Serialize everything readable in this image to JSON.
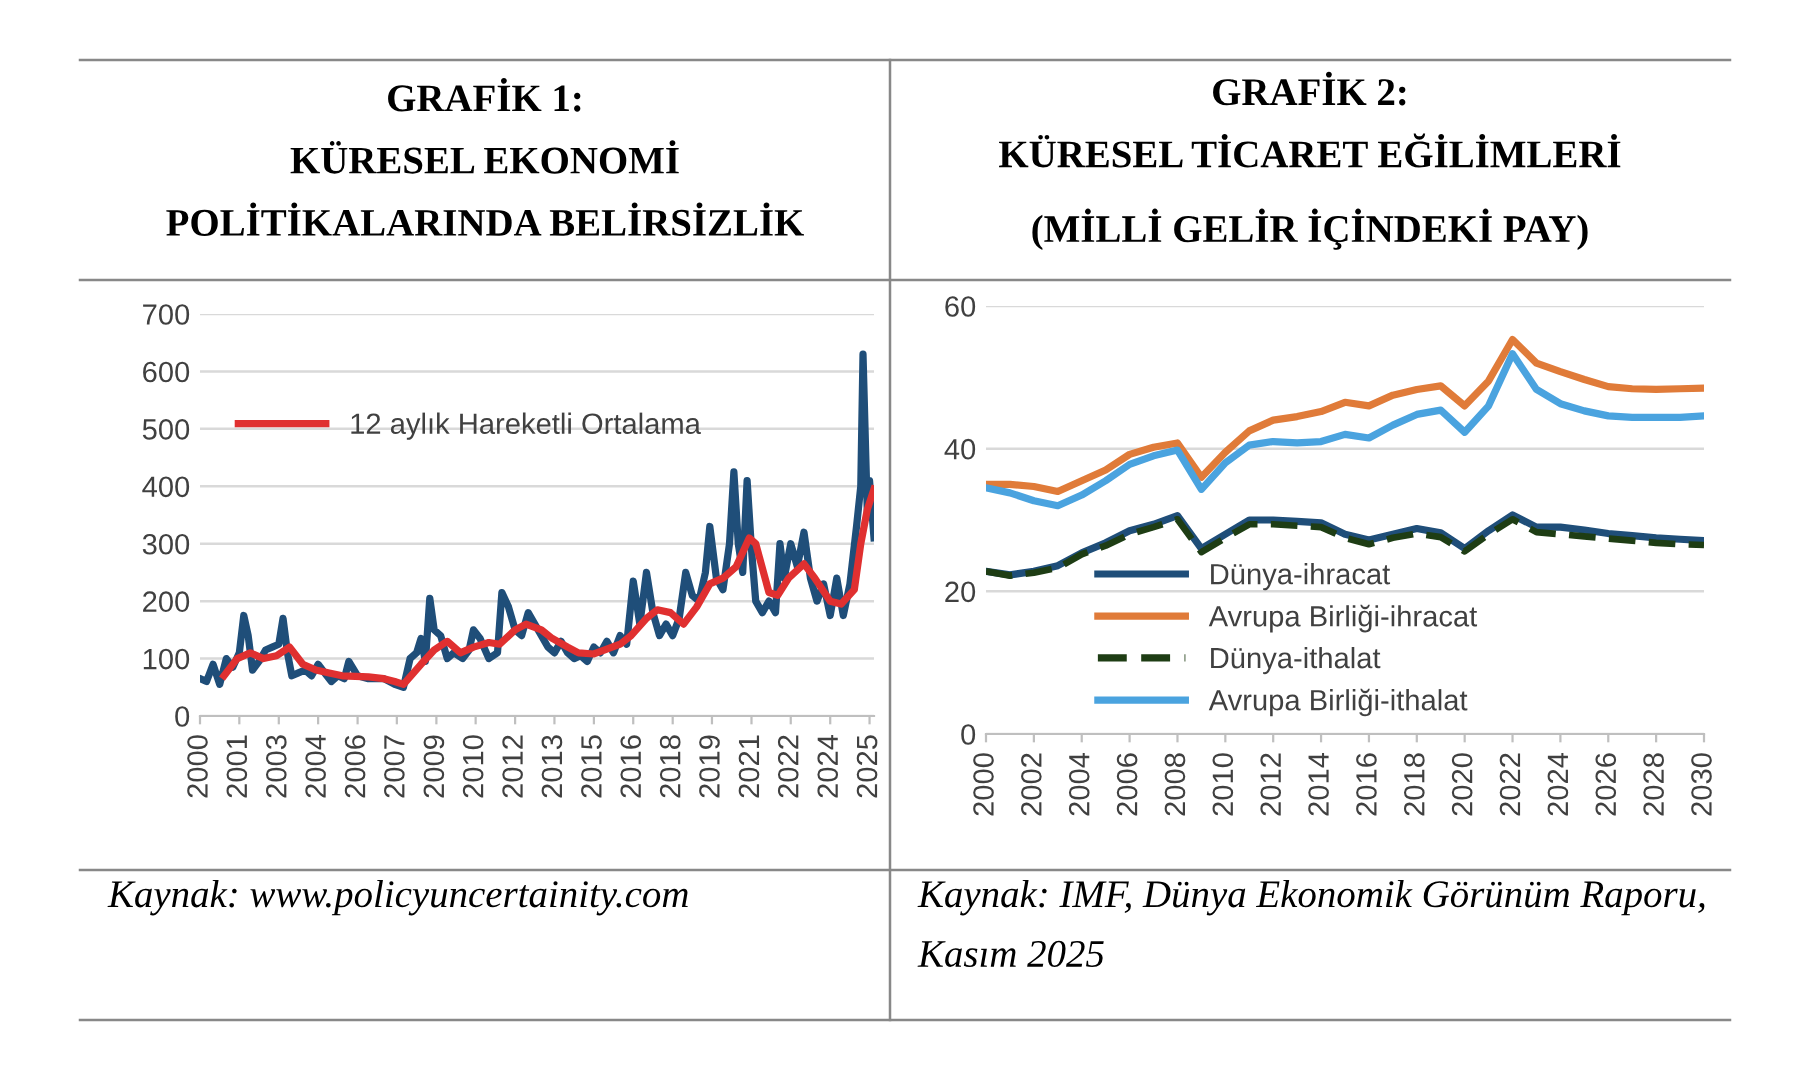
{
  "chart_data": [
    {
      "type": "line",
      "title": "GRAFİK 1:\nKÜRESEL EKONOMİ\nPOLİTİKALARINDA BELİRSİZLİK",
      "series": [
        {
          "color": "#1f4e79",
          "x": [
            "2000-01",
            "2000-04",
            "2000-07",
            "2000-10",
            "2001-01",
            "2001-04",
            "2001-07",
            "2001-09",
            "2001-11",
            "2002-01",
            "2002-04",
            "2002-07",
            "2002-10",
            "2003-01",
            "2003-03",
            "2003-05",
            "2003-07",
            "2003-10",
            "2004-01",
            "2004-04",
            "2004-07",
            "2004-10",
            "2005-01",
            "2005-04",
            "2005-07",
            "2005-09",
            "2006-01",
            "2006-06",
            "2007-01",
            "2007-06",
            "2007-10",
            "2008-01",
            "2008-04",
            "2008-06",
            "2008-08",
            "2008-10",
            "2008-12",
            "2009-03",
            "2009-06",
            "2009-09",
            "2010-01",
            "2010-04",
            "2010-06",
            "2010-09",
            "2011-01",
            "2011-05",
            "2011-07",
            "2011-10",
            "2012-01",
            "2012-04",
            "2012-07",
            "2012-10",
            "2013-01",
            "2013-04",
            "2013-07",
            "2013-10",
            "2014-01",
            "2014-04",
            "2014-07",
            "2014-10",
            "2015-01",
            "2015-04",
            "2015-07",
            "2015-10",
            "2016-01",
            "2016-04",
            "2016-07",
            "2016-10",
            "2017-01",
            "2017-04",
            "2017-07",
            "2017-10",
            "2018-01",
            "2018-04",
            "2018-07",
            "2018-10",
            "2019-01",
            "2019-04",
            "2019-06",
            "2019-09",
            "2019-12",
            "2020-03",
            "2020-05",
            "2020-07",
            "2020-09",
            "2020-11",
            "2021-01",
            "2021-03",
            "2021-06",
            "2021-09",
            "2021-12",
            "2022-02",
            "2022-04",
            "2022-07",
            "2022-10",
            "2023-01",
            "2023-04",
            "2023-07",
            "2023-10",
            "2024-01",
            "2024-04",
            "2024-07",
            "2024-10",
            "2025-01",
            "2025-03",
            "2025-04",
            "2025-06",
            "2025-07",
            "2025-09"
          ],
          "values": [
            65,
            60,
            90,
            55,
            100,
            85,
            110,
            175,
            140,
            80,
            95,
            115,
            120,
            125,
            170,
            110,
            70,
            75,
            80,
            70,
            90,
            75,
            60,
            70,
            65,
            95,
            70,
            65,
            65,
            55,
            50,
            100,
            110,
            135,
            95,
            205,
            150,
            140,
            100,
            110,
            100,
            115,
            150,
            135,
            100,
            110,
            215,
            190,
            150,
            140,
            180,
            160,
            140,
            120,
            110,
            130,
            110,
            100,
            105,
            95,
            120,
            110,
            130,
            110,
            140,
            125,
            235,
            160,
            250,
            180,
            140,
            160,
            140,
            170,
            250,
            210,
            200,
            250,
            330,
            240,
            220,
            300,
            425,
            300,
            250,
            410,
            290,
            200,
            180,
            200,
            180,
            300,
            240,
            300,
            260,
            320,
            240,
            200,
            230,
            175,
            240,
            175,
            230,
            330,
            400,
            630,
            350,
            410,
            310
          ]
        },
        {
          "name": "12 aylık Hareketli Ortalama",
          "color": "#e03030",
          "x": [
            "2000-12",
            "2001-06",
            "2001-12",
            "2002-06",
            "2002-12",
            "2003-06",
            "2003-12",
            "2004-06",
            "2004-12",
            "2005-06",
            "2006-06",
            "2007-01",
            "2007-06",
            "2007-10",
            "2008-06",
            "2008-12",
            "2009-06",
            "2009-12",
            "2010-06",
            "2011-01",
            "2011-06",
            "2012-01",
            "2012-06",
            "2013-01",
            "2013-06",
            "2014-01",
            "2014-06",
            "2015-01",
            "2015-06",
            "2016-01",
            "2016-06",
            "2017-01",
            "2017-06",
            "2017-12",
            "2018-06",
            "2018-12",
            "2019-06",
            "2019-12",
            "2020-06",
            "2020-12",
            "2021-03",
            "2021-09",
            "2022-01",
            "2022-06",
            "2023-01",
            "2023-06",
            "2024-01",
            "2024-06",
            "2024-12",
            "2025-03",
            "2025-06",
            "2025-09"
          ],
          "values": [
            70,
            100,
            110,
            100,
            105,
            120,
            90,
            80,
            75,
            70,
            68,
            65,
            60,
            55,
            90,
            115,
            130,
            110,
            120,
            128,
            125,
            150,
            160,
            150,
            135,
            120,
            110,
            108,
            115,
            125,
            140,
            170,
            185,
            180,
            160,
            190,
            230,
            240,
            260,
            310,
            300,
            215,
            210,
            240,
            265,
            240,
            200,
            195,
            220,
            300,
            360,
            395
          ]
        }
      ],
      "xlim": [
        "2000-01",
        "2025-09"
      ],
      "xticks": [
        {
          "value": "2000-01",
          "label": "2000"
        },
        {
          "value": "2001-07",
          "label": "2001"
        },
        {
          "value": "2003-01",
          "label": "2003"
        },
        {
          "value": "2004-07",
          "label": "2004"
        },
        {
          "value": "2006-01",
          "label": "2006"
        },
        {
          "value": "2007-07",
          "label": "2007"
        },
        {
          "value": "2009-01",
          "label": "2009"
        },
        {
          "value": "2010-07",
          "label": "2010"
        },
        {
          "value": "2012-01",
          "label": "2012"
        },
        {
          "value": "2013-07",
          "label": "2013"
        },
        {
          "value": "2015-01",
          "label": "2015"
        },
        {
          "value": "2016-07",
          "label": "2016"
        },
        {
          "value": "2018-01",
          "label": "2018"
        },
        {
          "value": "2019-07",
          "label": "2019"
        },
        {
          "value": "2021-01",
          "label": "2021"
        },
        {
          "value": "2022-07",
          "label": "2022"
        },
        {
          "value": "2024-01",
          "label": "2024"
        },
        {
          "value": "2025-07",
          "label": "2025"
        }
      ],
      "ylim": [
        0,
        700
      ],
      "yticks": [
        0,
        100,
        200,
        300,
        400,
        500,
        600,
        700
      ],
      "grid": "y",
      "legend": "top",
      "line_style": "solid",
      "marker": "none",
      "annotations": [
        "Kaynak: www.policyuncertainity.com"
      ]
    },
    {
      "type": "line",
      "title": "GRAFİK 2:\nKÜRESEL TİCARET EĞİLİMLERİ\n(MİLLİ GELİR İÇİNDEKİ PAY)",
      "x": [
        2000,
        2001,
        2002,
        2003,
        2004,
        2005,
        2006,
        2007,
        2008,
        2009,
        2010,
        2011,
        2012,
        2013,
        2014,
        2015,
        2016,
        2017,
        2018,
        2019,
        2020,
        2021,
        2022,
        2023,
        2024,
        2025,
        2026,
        2027,
        2028,
        2029,
        2030
      ],
      "series": [
        {
          "name": "Dünya-ihracat",
          "color": "#1f4e79",
          "values": [
            22.8,
            22.3,
            22.8,
            23.6,
            25.4,
            26.8,
            28.5,
            29.4,
            30.6,
            26,
            28,
            30,
            30,
            29.8,
            29.6,
            28,
            27.2,
            28,
            28.8,
            28.2,
            26,
            28.5,
            30.7,
            29,
            29,
            28.6,
            28.1,
            27.8,
            27.5,
            27.3,
            27.1
          ]
        },
        {
          "name": "Avrupa Birliği-ihracat",
          "color": "#e07b39",
          "values": [
            35,
            35,
            34.7,
            34,
            35.5,
            37,
            39.2,
            40.2,
            40.8,
            36,
            39.5,
            42.5,
            44,
            44.5,
            45.2,
            46.5,
            46,
            47.5,
            48.3,
            48.8,
            46,
            49.5,
            55.3,
            52,
            50.8,
            49.7,
            48.7,
            48.4,
            48.3,
            48.4,
            48.5
          ]
        },
        {
          "name": "Dünya-ithalat",
          "color": "#1e3d14",
          "line_style": "dashed",
          "values": [
            22.8,
            22.2,
            22.6,
            23.3,
            25.2,
            26.4,
            28,
            29,
            30.1,
            25.5,
            27.5,
            29.4,
            29.4,
            29.2,
            29,
            27.5,
            26.6,
            27.5,
            28.1,
            27.6,
            25.6,
            28,
            30.1,
            28.3,
            28,
            27.7,
            27.4,
            27.1,
            26.8,
            26.6,
            26.5
          ]
        },
        {
          "name": "Avrupa Birliği-ithalat",
          "color": "#4aa3df",
          "values": [
            34.5,
            33.8,
            32.7,
            32,
            33.5,
            35.5,
            37.8,
            39,
            39.8,
            34.3,
            38,
            40.5,
            41,
            40.8,
            41,
            42,
            41.5,
            43.3,
            44.8,
            45.4,
            42.3,
            46,
            53.3,
            48.3,
            46.3,
            45.3,
            44.6,
            44.4,
            44.4,
            44.4,
            44.6
          ]
        }
      ],
      "xlim": [
        2000,
        2030
      ],
      "xticks": [
        2000,
        2002,
        2004,
        2006,
        2008,
        2010,
        2012,
        2014,
        2016,
        2018,
        2020,
        2022,
        2024,
        2026,
        2028,
        2030
      ],
      "ylim": [
        0,
        60
      ],
      "yticks": [
        0,
        20,
        40,
        60
      ],
      "grid": "y",
      "legend": "bottom",
      "line_style": "solid",
      "marker": "none",
      "annotations": [
        "Kaynak: IMF, Dünya Ekonomik Görünüm Raporu, Kasım 2025"
      ]
    }
  ]
}
